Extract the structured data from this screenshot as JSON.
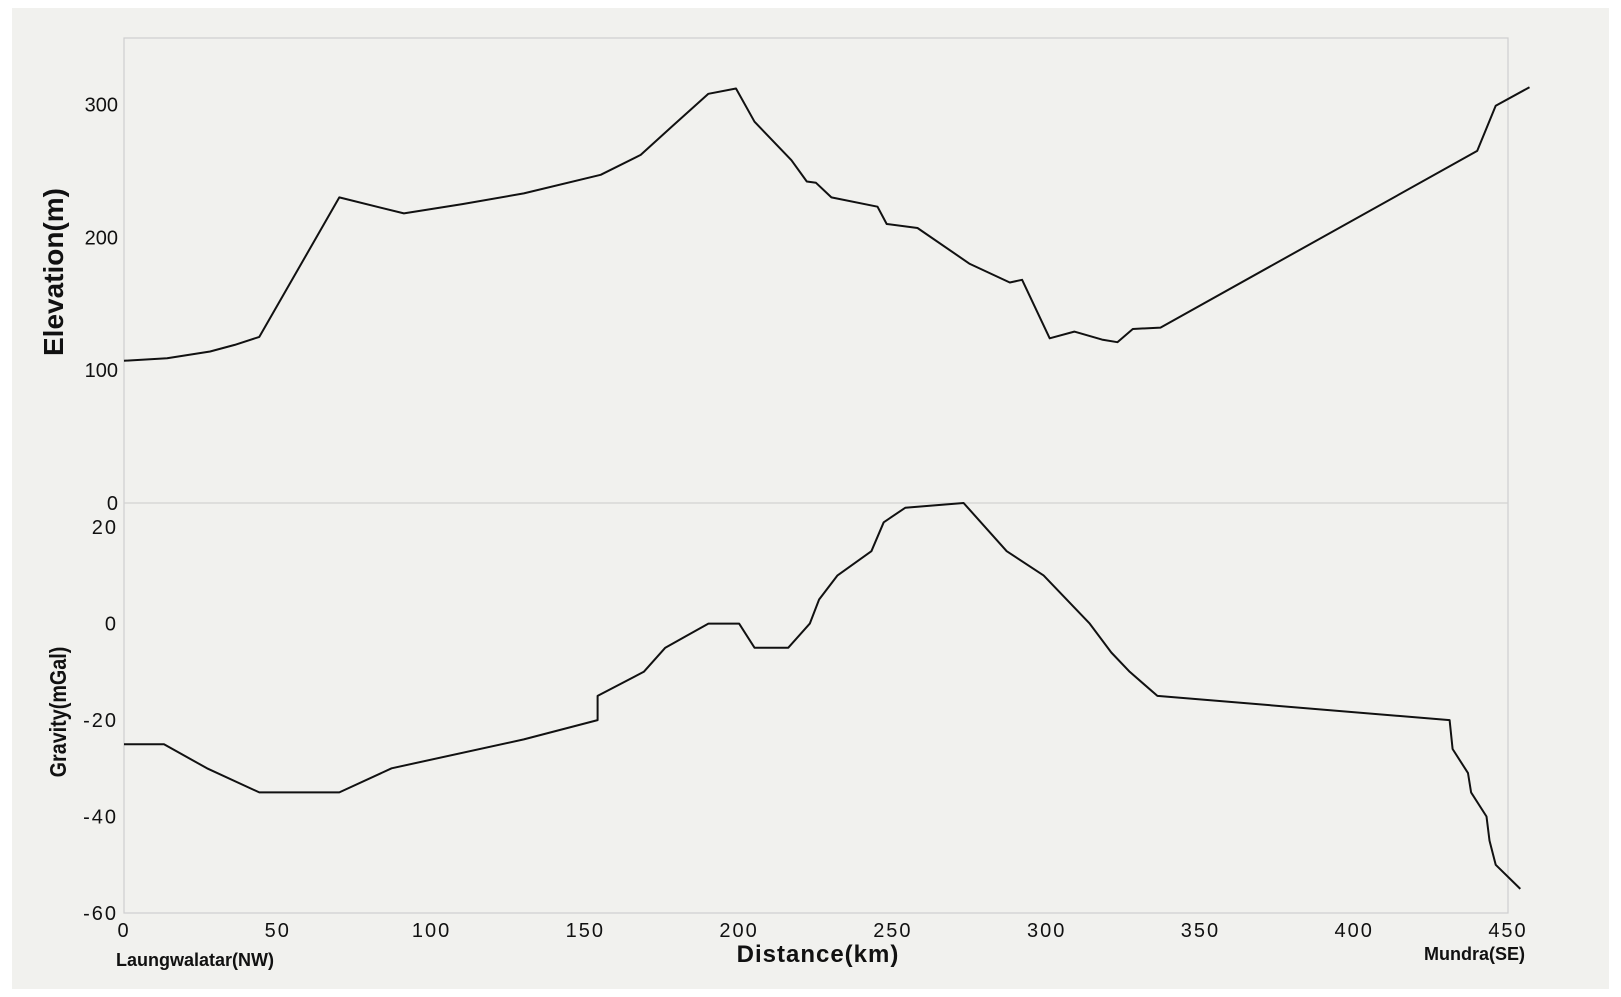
{
  "chart_data": {
    "type": "line",
    "xlabel": "Distance(km)",
    "xlim": [
      0,
      450
    ],
    "xticks": [
      0,
      50,
      100,
      150,
      200,
      250,
      300,
      350,
      400,
      450
    ],
    "end_labels": {
      "left": "Laungwalatar(NW)",
      "right": "Mundra(SE)"
    },
    "panels": [
      {
        "name": "elevation",
        "ylabel": "Elevation(m)",
        "ylim": [
          0,
          350
        ],
        "yticks": [
          0,
          100,
          200,
          300
        ],
        "x": [
          0,
          14,
          28,
          36,
          44,
          70,
          91,
          110,
          130,
          155,
          168,
          178,
          190,
          199,
          205,
          217,
          222,
          225,
          230,
          245,
          248,
          258,
          275,
          288,
          292,
          301,
          309,
          318,
          323,
          328,
          337,
          440,
          446,
          457
        ],
        "y": [
          107,
          109,
          114,
          119,
          125,
          230,
          218,
          225,
          233,
          247,
          262,
          283,
          308,
          312,
          287,
          258,
          242,
          241,
          230,
          223,
          210,
          207,
          180,
          166,
          168,
          124,
          129,
          123,
          121,
          131,
          132,
          265,
          299,
          313
        ]
      },
      {
        "name": "gravity",
        "ylabel": "Gravity(mGal)",
        "ylim": [
          -60,
          25
        ],
        "yticks": [
          -60,
          -40,
          -20,
          0,
          20
        ],
        "x": [
          0,
          13,
          27,
          44,
          70,
          87,
          130,
          154,
          154,
          169,
          176,
          190,
          200,
          205,
          216,
          223,
          226,
          232,
          243,
          247,
          254,
          273,
          287,
          299,
          314,
          321,
          327,
          336,
          431,
          432,
          437,
          438,
          443,
          444,
          446,
          454
        ],
        "y": [
          -25,
          -25,
          -30,
          -35,
          -35,
          -30,
          -24,
          -20,
          -15,
          -10,
          -5,
          0,
          0,
          -5,
          -5,
          0,
          5,
          10,
          15,
          21,
          24,
          25,
          15,
          10,
          0,
          -6,
          -10,
          -15,
          -20,
          -26,
          -31,
          -35,
          -40,
          -45,
          -50,
          -55
        ]
      }
    ]
  }
}
